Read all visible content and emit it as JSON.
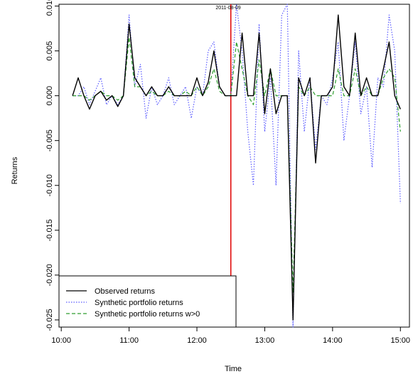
{
  "chart_data": {
    "type": "line",
    "title": "2011-08-09",
    "xlabel": "Time",
    "ylabel": "Returns",
    "xlim": [
      "09:58",
      "15:08"
    ],
    "ylim": [
      -0.0258,
      0.0102
    ],
    "x_ticks": [
      "10:00",
      "11:00",
      "12:00",
      "13:00",
      "14:00",
      "15:00"
    ],
    "y_ticks": [
      "0.010",
      "0.005",
      "0.000",
      "-0.005",
      "-0.010",
      "-0.015",
      "-0.020",
      "-0.025"
    ],
    "grid": false,
    "legend_position": "bottom-left",
    "vertical_line": {
      "x": "12:30",
      "color": "#e00000"
    },
    "x": [
      "10:10",
      "10:15",
      "10:20",
      "10:25",
      "10:30",
      "10:35",
      "10:40",
      "10:45",
      "10:50",
      "10:55",
      "11:00",
      "11:05",
      "11:10",
      "11:15",
      "11:20",
      "11:25",
      "11:30",
      "11:35",
      "11:40",
      "11:45",
      "11:50",
      "11:55",
      "12:00",
      "12:05",
      "12:10",
      "12:15",
      "12:20",
      "12:25",
      "12:30",
      "12:35",
      "12:40",
      "12:45",
      "12:50",
      "12:55",
      "13:00",
      "13:05",
      "13:10",
      "13:15",
      "13:20",
      "13:25",
      "13:30",
      "13:35",
      "13:40",
      "13:45",
      "13:50",
      "13:55",
      "14:00",
      "14:05",
      "14:10",
      "14:15",
      "14:20",
      "14:25",
      "14:30",
      "14:35",
      "14:40",
      "14:45",
      "14:50",
      "14:55",
      "15:00"
    ],
    "series": [
      {
        "name": "Observed returns",
        "color": "#000000",
        "dash": "solid",
        "values": [
          0.0,
          0.002,
          0.0,
          -0.0015,
          0.0,
          0.0005,
          -0.0005,
          0.0,
          -0.0012,
          0.0,
          0.008,
          0.002,
          0.001,
          0.0,
          0.001,
          0.0,
          0.0,
          0.001,
          0.0,
          0.0,
          0.0,
          0.0,
          0.002,
          0.0,
          0.0015,
          0.005,
          0.001,
          0.0,
          0.0,
          0.0,
          0.007,
          0.0,
          0.0,
          0.007,
          -0.002,
          0.003,
          -0.002,
          0.0,
          0.0,
          -0.025,
          0.002,
          0.0,
          0.002,
          -0.0075,
          0.0,
          0.0,
          0.001,
          0.009,
          0.001,
          0.0,
          0.007,
          0.0,
          0.002,
          0.0,
          0.0,
          0.003,
          0.006,
          0.0,
          -0.0015
        ]
      },
      {
        "name": "Synthetic portfolio returns",
        "color": "#5a5aff",
        "dash": "dotted",
        "values": [
          0.0,
          0.0,
          0.001,
          -0.001,
          0.0005,
          0.002,
          -0.001,
          0.0,
          -0.001,
          0.0,
          0.009,
          0.001,
          0.0035,
          -0.0025,
          0.001,
          -0.001,
          0.0,
          0.002,
          -0.001,
          0.0,
          0.001,
          -0.0025,
          0.001,
          0.0,
          0.005,
          0.006,
          0.001,
          0.0,
          0.0,
          0.0102,
          0.005,
          -0.004,
          -0.01,
          0.008,
          -0.004,
          0.002,
          -0.01,
          0.009,
          0.0102,
          -0.0258,
          0.005,
          -0.004,
          0.002,
          -0.006,
          0.0,
          -0.001,
          0.002,
          0.006,
          -0.005,
          0.0,
          0.006,
          -0.002,
          0.001,
          -0.008,
          0.002,
          0.001,
          0.009,
          0.005,
          -0.012
        ]
      },
      {
        "name": "Synthetic portfolio returns w>0",
        "color": "#2e9e2e",
        "dash": "dashed",
        "values": [
          0.0,
          0.0,
          0.0,
          -0.0005,
          0.0,
          0.0005,
          0.0,
          0.0,
          -0.0005,
          0.0,
          0.0065,
          0.001,
          0.001,
          0.0,
          0.0005,
          0.0,
          0.0,
          0.0005,
          0.0,
          0.0,
          0.0005,
          0.0,
          0.001,
          0.0,
          0.001,
          0.003,
          0.0005,
          0.0,
          0.0,
          0.006,
          0.003,
          0.0,
          -0.001,
          0.004,
          0.0,
          0.003,
          0.0,
          0.0,
          0.0,
          -0.022,
          0.001,
          0.0,
          0.001,
          0.0,
          0.0,
          0.0,
          0.0,
          0.003,
          0.0,
          0.0,
          0.003,
          0.0,
          0.001,
          0.0,
          0.0,
          0.002,
          0.003,
          0.002,
          -0.004
        ]
      }
    ]
  }
}
